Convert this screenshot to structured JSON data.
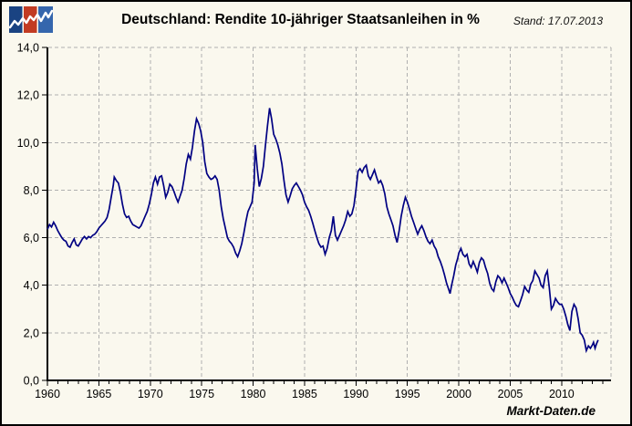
{
  "header": {
    "title": "Deutschland: Rendite 10-jähriger Staatsanleihen in %",
    "stand": "Stand: 17.07.2013",
    "logo": {
      "icon": "mini-line-chart-logo",
      "square_colors": [
        "#1a4382",
        "#c23b22",
        "#3566ad"
      ],
      "zigzag_color": "#ffffff"
    }
  },
  "watermark": "Markt-Daten.de",
  "colors": {
    "background": "#faf8ee",
    "line": "#000082",
    "grid": "#b0b0b0",
    "axis": "#000000",
    "text": "#000000",
    "border": "#000000"
  },
  "chart_data": {
    "type": "line",
    "title": "Deutschland: Rendite 10-jähriger Staatsanleihen in %",
    "as_of": "17.07.2013",
    "xlabel": "",
    "ylabel": "",
    "x_range": [
      1960,
      2014.8
    ],
    "y_range": [
      0,
      14
    ],
    "grid": "dashed",
    "legend": "none",
    "y_ticks": [
      {
        "value": 0,
        "label": "0,0"
      },
      {
        "value": 2,
        "label": "2,0"
      },
      {
        "value": 4,
        "label": "4,0"
      },
      {
        "value": 6,
        "label": "6,0"
      },
      {
        "value": 8,
        "label": "8,0"
      },
      {
        "value": 10,
        "label": "10,0"
      },
      {
        "value": 12,
        "label": "12,0"
      },
      {
        "value": 14,
        "label": "14,0"
      }
    ],
    "x_major_ticks": [
      {
        "value": 1960,
        "label": "1960"
      },
      {
        "value": 1965,
        "label": "1965"
      },
      {
        "value": 1970,
        "label": "1970"
      },
      {
        "value": 1975,
        "label": "1975"
      },
      {
        "value": 1980,
        "label": "1980"
      },
      {
        "value": 1985,
        "label": "1985"
      },
      {
        "value": 1990,
        "label": "1990"
      },
      {
        "value": 1995,
        "label": "1995"
      },
      {
        "value": 2000,
        "label": "2000"
      },
      {
        "value": 2005,
        "label": "2005"
      },
      {
        "value": 2010,
        "label": "2010"
      }
    ],
    "x_minor_tick_step": 1,
    "x_minor_tick_end": 2014,
    "v_grid_years": [
      1965,
      1970,
      1975,
      1980,
      1985,
      1990,
      1995,
      2000,
      2005,
      2010
    ],
    "series": [
      {
        "name": "Rendite 10-jähriger Staatsanleihen in %",
        "color": "#000082",
        "points": [
          [
            1960.0,
            6.35
          ],
          [
            1960.2,
            6.55
          ],
          [
            1960.4,
            6.45
          ],
          [
            1960.6,
            6.65
          ],
          [
            1960.8,
            6.5
          ],
          [
            1961.0,
            6.3
          ],
          [
            1961.2,
            6.15
          ],
          [
            1961.4,
            6.0
          ],
          [
            1961.6,
            5.9
          ],
          [
            1961.8,
            5.85
          ],
          [
            1962.0,
            5.65
          ],
          [
            1962.2,
            5.6
          ],
          [
            1962.4,
            5.8
          ],
          [
            1962.6,
            5.95
          ],
          [
            1962.8,
            5.7
          ],
          [
            1963.0,
            5.65
          ],
          [
            1963.2,
            5.8
          ],
          [
            1963.4,
            5.95
          ],
          [
            1963.6,
            6.05
          ],
          [
            1963.8,
            5.95
          ],
          [
            1964.0,
            6.05
          ],
          [
            1964.2,
            6.0
          ],
          [
            1964.4,
            6.1
          ],
          [
            1964.6,
            6.15
          ],
          [
            1964.8,
            6.25
          ],
          [
            1965.0,
            6.4
          ],
          [
            1965.2,
            6.5
          ],
          [
            1965.4,
            6.6
          ],
          [
            1965.6,
            6.7
          ],
          [
            1965.8,
            6.85
          ],
          [
            1966.0,
            7.2
          ],
          [
            1966.2,
            7.7
          ],
          [
            1966.4,
            8.2
          ],
          [
            1966.5,
            8.55
          ],
          [
            1966.7,
            8.4
          ],
          [
            1966.9,
            8.3
          ],
          [
            1967.1,
            7.9
          ],
          [
            1967.3,
            7.4
          ],
          [
            1967.5,
            7.0
          ],
          [
            1967.7,
            6.85
          ],
          [
            1967.9,
            6.9
          ],
          [
            1968.1,
            6.7
          ],
          [
            1968.3,
            6.55
          ],
          [
            1968.5,
            6.5
          ],
          [
            1968.7,
            6.45
          ],
          [
            1968.9,
            6.4
          ],
          [
            1969.1,
            6.5
          ],
          [
            1969.3,
            6.7
          ],
          [
            1969.5,
            6.9
          ],
          [
            1969.7,
            7.1
          ],
          [
            1969.9,
            7.4
          ],
          [
            1970.1,
            7.8
          ],
          [
            1970.3,
            8.3
          ],
          [
            1970.5,
            8.55
          ],
          [
            1970.7,
            8.25
          ],
          [
            1970.9,
            8.55
          ],
          [
            1971.1,
            8.6
          ],
          [
            1971.3,
            8.2
          ],
          [
            1971.5,
            7.7
          ],
          [
            1971.7,
            7.9
          ],
          [
            1971.9,
            8.25
          ],
          [
            1972.1,
            8.15
          ],
          [
            1972.3,
            7.95
          ],
          [
            1972.5,
            7.7
          ],
          [
            1972.7,
            7.5
          ],
          [
            1972.9,
            7.75
          ],
          [
            1973.1,
            8.0
          ],
          [
            1973.3,
            8.5
          ],
          [
            1973.5,
            9.1
          ],
          [
            1973.7,
            9.5
          ],
          [
            1973.9,
            9.3
          ],
          [
            1974.1,
            9.8
          ],
          [
            1974.3,
            10.5
          ],
          [
            1974.5,
            11.0
          ],
          [
            1974.7,
            10.8
          ],
          [
            1974.9,
            10.5
          ],
          [
            1975.1,
            10.0
          ],
          [
            1975.3,
            9.2
          ],
          [
            1975.5,
            8.7
          ],
          [
            1975.7,
            8.55
          ],
          [
            1975.9,
            8.45
          ],
          [
            1976.1,
            8.5
          ],
          [
            1976.3,
            8.6
          ],
          [
            1976.5,
            8.45
          ],
          [
            1976.7,
            8.0
          ],
          [
            1976.9,
            7.3
          ],
          [
            1977.1,
            6.8
          ],
          [
            1977.3,
            6.4
          ],
          [
            1977.5,
            6.0
          ],
          [
            1977.7,
            5.85
          ],
          [
            1977.9,
            5.75
          ],
          [
            1978.1,
            5.6
          ],
          [
            1978.3,
            5.35
          ],
          [
            1978.5,
            5.2
          ],
          [
            1978.7,
            5.45
          ],
          [
            1978.9,
            5.75
          ],
          [
            1979.1,
            6.2
          ],
          [
            1979.3,
            6.7
          ],
          [
            1979.5,
            7.1
          ],
          [
            1979.7,
            7.3
          ],
          [
            1979.9,
            7.5
          ],
          [
            1980.1,
            8.3
          ],
          [
            1980.2,
            9.9
          ],
          [
            1980.4,
            8.9
          ],
          [
            1980.6,
            8.15
          ],
          [
            1980.8,
            8.5
          ],
          [
            1981.0,
            9.0
          ],
          [
            1981.2,
            9.9
          ],
          [
            1981.4,
            10.7
          ],
          [
            1981.6,
            11.45
          ],
          [
            1981.8,
            11.0
          ],
          [
            1982.0,
            10.35
          ],
          [
            1982.2,
            10.15
          ],
          [
            1982.4,
            9.9
          ],
          [
            1982.6,
            9.55
          ],
          [
            1982.8,
            9.1
          ],
          [
            1983.0,
            8.4
          ],
          [
            1983.2,
            7.8
          ],
          [
            1983.4,
            7.5
          ],
          [
            1983.6,
            7.75
          ],
          [
            1983.8,
            8.05
          ],
          [
            1984.0,
            8.2
          ],
          [
            1984.2,
            8.3
          ],
          [
            1984.4,
            8.15
          ],
          [
            1984.6,
            8.0
          ],
          [
            1984.8,
            7.8
          ],
          [
            1985.0,
            7.5
          ],
          [
            1985.2,
            7.3
          ],
          [
            1985.4,
            7.15
          ],
          [
            1985.6,
            6.9
          ],
          [
            1985.8,
            6.6
          ],
          [
            1986.0,
            6.3
          ],
          [
            1986.2,
            6.0
          ],
          [
            1986.4,
            5.75
          ],
          [
            1986.6,
            5.6
          ],
          [
            1986.8,
            5.65
          ],
          [
            1987.0,
            5.3
          ],
          [
            1987.2,
            5.55
          ],
          [
            1987.4,
            6.0
          ],
          [
            1987.6,
            6.3
          ],
          [
            1987.8,
            6.9
          ],
          [
            1988.0,
            6.1
          ],
          [
            1988.2,
            5.9
          ],
          [
            1988.4,
            6.1
          ],
          [
            1988.6,
            6.3
          ],
          [
            1988.8,
            6.5
          ],
          [
            1989.0,
            6.75
          ],
          [
            1989.2,
            7.1
          ],
          [
            1989.4,
            6.9
          ],
          [
            1989.6,
            7.0
          ],
          [
            1989.8,
            7.35
          ],
          [
            1990.0,
            8.0
          ],
          [
            1990.2,
            8.8
          ],
          [
            1990.4,
            8.9
          ],
          [
            1990.6,
            8.75
          ],
          [
            1990.8,
            8.95
          ],
          [
            1991.0,
            9.05
          ],
          [
            1991.2,
            8.6
          ],
          [
            1991.4,
            8.45
          ],
          [
            1991.6,
            8.65
          ],
          [
            1991.8,
            8.85
          ],
          [
            1992.0,
            8.55
          ],
          [
            1992.2,
            8.3
          ],
          [
            1992.4,
            8.4
          ],
          [
            1992.6,
            8.2
          ],
          [
            1992.8,
            7.85
          ],
          [
            1993.0,
            7.3
          ],
          [
            1993.2,
            7.0
          ],
          [
            1993.4,
            6.75
          ],
          [
            1993.6,
            6.5
          ],
          [
            1993.8,
            6.1
          ],
          [
            1994.0,
            5.8
          ],
          [
            1994.2,
            6.3
          ],
          [
            1994.4,
            6.9
          ],
          [
            1994.6,
            7.35
          ],
          [
            1994.8,
            7.7
          ],
          [
            1995.0,
            7.5
          ],
          [
            1995.2,
            7.2
          ],
          [
            1995.4,
            6.9
          ],
          [
            1995.6,
            6.65
          ],
          [
            1995.8,
            6.4
          ],
          [
            1996.0,
            6.15
          ],
          [
            1996.2,
            6.35
          ],
          [
            1996.4,
            6.5
          ],
          [
            1996.6,
            6.3
          ],
          [
            1996.8,
            6.05
          ],
          [
            1997.0,
            5.85
          ],
          [
            1997.2,
            5.75
          ],
          [
            1997.4,
            5.9
          ],
          [
            1997.6,
            5.65
          ],
          [
            1997.8,
            5.5
          ],
          [
            1998.0,
            5.2
          ],
          [
            1998.2,
            5.0
          ],
          [
            1998.4,
            4.75
          ],
          [
            1998.6,
            4.45
          ],
          [
            1998.8,
            4.1
          ],
          [
            1999.0,
            3.85
          ],
          [
            1999.15,
            3.65
          ],
          [
            1999.3,
            4.0
          ],
          [
            1999.5,
            4.4
          ],
          [
            1999.7,
            4.85
          ],
          [
            1999.9,
            5.15
          ],
          [
            2000.0,
            5.35
          ],
          [
            2000.2,
            5.55
          ],
          [
            2000.4,
            5.3
          ],
          [
            2000.6,
            5.2
          ],
          [
            2000.8,
            5.3
          ],
          [
            2001.0,
            4.9
          ],
          [
            2001.2,
            4.75
          ],
          [
            2001.4,
            5.0
          ],
          [
            2001.6,
            4.8
          ],
          [
            2001.8,
            4.55
          ],
          [
            2002.0,
            4.95
          ],
          [
            2002.2,
            5.15
          ],
          [
            2002.4,
            5.05
          ],
          [
            2002.6,
            4.75
          ],
          [
            2002.8,
            4.5
          ],
          [
            2003.0,
            4.1
          ],
          [
            2003.2,
            3.85
          ],
          [
            2003.4,
            3.75
          ],
          [
            2003.6,
            4.15
          ],
          [
            2003.8,
            4.4
          ],
          [
            2004.0,
            4.3
          ],
          [
            2004.2,
            4.1
          ],
          [
            2004.4,
            4.3
          ],
          [
            2004.6,
            4.1
          ],
          [
            2004.8,
            3.9
          ],
          [
            2005.0,
            3.65
          ],
          [
            2005.2,
            3.5
          ],
          [
            2005.4,
            3.3
          ],
          [
            2005.6,
            3.15
          ],
          [
            2005.8,
            3.1
          ],
          [
            2006.0,
            3.35
          ],
          [
            2006.2,
            3.6
          ],
          [
            2006.4,
            3.95
          ],
          [
            2006.6,
            3.8
          ],
          [
            2006.8,
            3.7
          ],
          [
            2007.0,
            4.05
          ],
          [
            2007.2,
            4.2
          ],
          [
            2007.4,
            4.6
          ],
          [
            2007.6,
            4.45
          ],
          [
            2007.8,
            4.3
          ],
          [
            2008.0,
            4.0
          ],
          [
            2008.2,
            3.9
          ],
          [
            2008.4,
            4.4
          ],
          [
            2008.6,
            4.6
          ],
          [
            2008.8,
            3.9
          ],
          [
            2009.0,
            3.0
          ],
          [
            2009.2,
            3.15
          ],
          [
            2009.4,
            3.45
          ],
          [
            2009.6,
            3.3
          ],
          [
            2009.8,
            3.2
          ],
          [
            2010.0,
            3.2
          ],
          [
            2010.2,
            3.0
          ],
          [
            2010.4,
            2.7
          ],
          [
            2010.6,
            2.35
          ],
          [
            2010.8,
            2.1
          ],
          [
            2011.0,
            2.9
          ],
          [
            2011.2,
            3.2
          ],
          [
            2011.4,
            3.05
          ],
          [
            2011.6,
            2.6
          ],
          [
            2011.8,
            2.0
          ],
          [
            2012.0,
            1.9
          ],
          [
            2012.2,
            1.7
          ],
          [
            2012.4,
            1.25
          ],
          [
            2012.6,
            1.45
          ],
          [
            2012.8,
            1.35
          ],
          [
            2013.0,
            1.5
          ],
          [
            2013.1,
            1.6
          ],
          [
            2013.25,
            1.35
          ],
          [
            2013.4,
            1.55
          ],
          [
            2013.55,
            1.7
          ]
        ]
      }
    ]
  }
}
